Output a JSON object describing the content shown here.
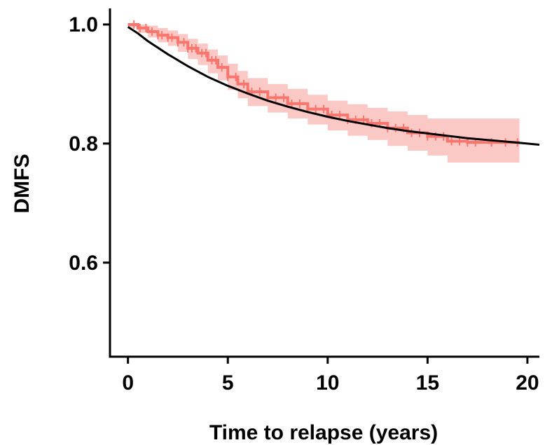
{
  "chart_data": {
    "type": "line",
    "xlabel": "Time to relapse (years)",
    "ylabel": "DMFS",
    "xlim": [
      -0.9,
      20.6
    ],
    "ylim": [
      0.442,
      1.027
    ],
    "x_ticks": [
      0,
      5,
      10,
      15,
      20
    ],
    "x_tick_labels": [
      "0",
      "5",
      "10",
      "15",
      "20"
    ],
    "y_ticks": [
      0.6,
      0.8,
      1.0
    ],
    "y_tick_labels": [
      "0.6",
      "0.8",
      "1.0"
    ],
    "grid": false,
    "legend": "none",
    "colors": {
      "km": "#f8766d",
      "ci": "#fbc9c5",
      "model": "#000000"
    },
    "series": [
      {
        "kind": "km-step",
        "x": [
          0,
          0.5,
          1,
          1.5,
          2,
          2.5,
          3,
          3.5,
          4,
          4.5,
          5,
          5.5,
          6,
          7,
          8,
          9,
          10,
          11,
          12,
          13,
          14,
          15,
          16,
          17,
          18,
          19,
          19.6
        ],
        "y": [
          1.0,
          0.994,
          0.988,
          0.982,
          0.978,
          0.97,
          0.96,
          0.952,
          0.94,
          0.928,
          0.912,
          0.9,
          0.887,
          0.877,
          0.867,
          0.858,
          0.848,
          0.84,
          0.834,
          0.826,
          0.818,
          0.812,
          0.804,
          0.802,
          0.802,
          0.802,
          0.802
        ]
      },
      {
        "kind": "ci-band",
        "x": [
          0,
          0.5,
          1,
          1.5,
          2,
          2.5,
          3,
          3.5,
          4,
          4.5,
          5,
          5.5,
          6,
          7,
          8,
          9,
          10,
          11,
          12,
          13,
          14,
          15,
          16,
          17,
          18,
          19,
          19.6
        ],
        "lower": [
          0.995,
          0.986,
          0.978,
          0.97,
          0.964,
          0.954,
          0.942,
          0.932,
          0.918,
          0.906,
          0.89,
          0.876,
          0.863,
          0.852,
          0.842,
          0.832,
          0.822,
          0.813,
          0.806,
          0.796,
          0.788,
          0.78,
          0.768,
          0.768,
          0.768,
          0.768,
          0.768
        ],
        "upper": [
          1.0,
          1.0,
          0.998,
          0.994,
          0.99,
          0.984,
          0.976,
          0.968,
          0.958,
          0.948,
          0.934,
          0.922,
          0.91,
          0.9,
          0.892,
          0.882,
          0.872,
          0.866,
          0.86,
          0.854,
          0.848,
          0.842,
          0.842,
          0.842,
          0.842,
          0.842,
          0.842
        ]
      },
      {
        "kind": "model-curve",
        "x": [
          0,
          0.5,
          1,
          2,
          3,
          4,
          5,
          6,
          7,
          8,
          9,
          10,
          11,
          12,
          13,
          14,
          15,
          16,
          17,
          18,
          19,
          20,
          20.6
        ],
        "y": [
          0.996,
          0.985,
          0.972,
          0.95,
          0.93,
          0.912,
          0.897,
          0.884,
          0.872,
          0.862,
          0.853,
          0.845,
          0.838,
          0.832,
          0.826,
          0.821,
          0.817,
          0.813,
          0.809,
          0.806,
          0.803,
          0.8,
          0.798
        ]
      }
    ],
    "censor_x": [
      0.3,
      0.6,
      0.9,
      1.2,
      1.5,
      1.7,
      2.0,
      2.2,
      2.5,
      2.8,
      3.0,
      3.2,
      3.4,
      3.7,
      3.9,
      4.2,
      4.4,
      4.7,
      5.0,
      5.4,
      5.8,
      6.2,
      6.6,
      7.0,
      7.4,
      7.8,
      8.2,
      8.6,
      9.0,
      9.4,
      9.8,
      10.2,
      10.6,
      11.0,
      11.4,
      11.8,
      12.2,
      12.6,
      13.0,
      13.4,
      13.8,
      14.2,
      14.6,
      15.0,
      15.4,
      15.8,
      16.2,
      16.6,
      17.0,
      17.4,
      18.2,
      18.9,
      19.5
    ]
  }
}
